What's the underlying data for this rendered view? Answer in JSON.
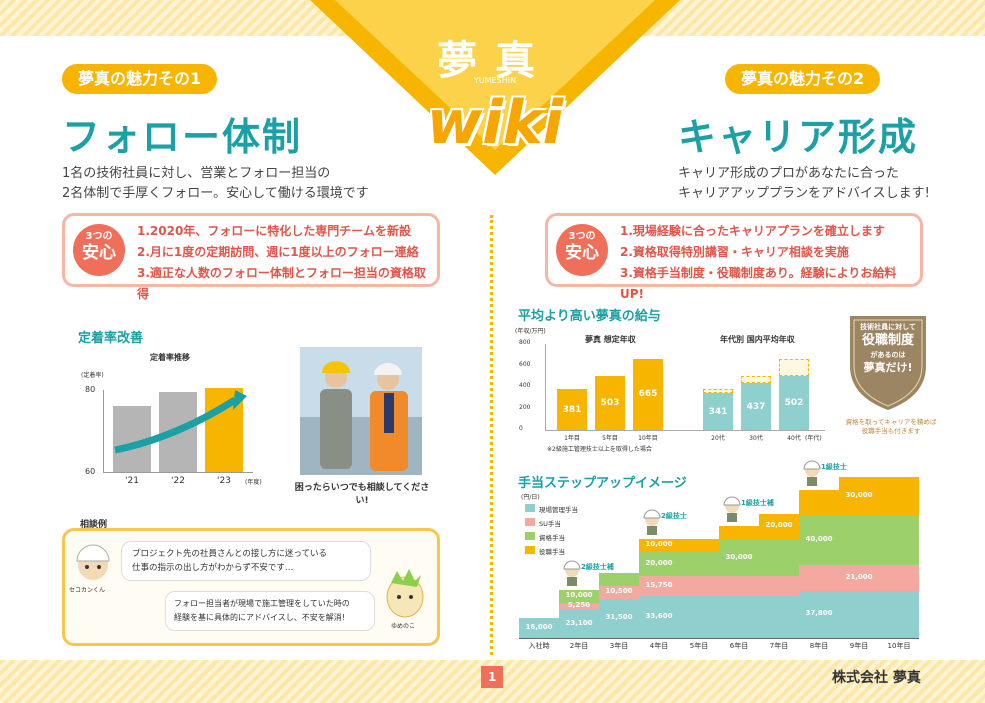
{
  "header": {
    "logo": "夢真",
    "logo_sub": "YUMESHIN",
    "wiki": "wiki"
  },
  "left": {
    "pill": "夢真の魅力その1",
    "title": "フォロー体制",
    "desc": [
      "1名の技術社員に対し、営業とフォロー担当の",
      "2名体制で手厚くフォロー。安心して働ける環境です"
    ],
    "badge_small": "3つの",
    "badge_big": "安心",
    "points": [
      "1.2020年、フォローに特化した専門チームを新設",
      "2.月に1度の定期訪問、週に1度以上のフォロー連絡",
      "3.適正な人数のフォロー体制とフォロー担当の資格取得"
    ],
    "section_title": "定着率改善",
    "photo_caption": "困ったらいつでも相談してください!",
    "consult_title": "相談例",
    "consult_q": [
      "プロジェクト先の社員さんとの接し方に迷っている",
      "仕事の指示の出し方がわからず不安です…"
    ],
    "consult_a": [
      "フォロー担当者が現場で施工管理をしていた時の",
      "経験を基に具体的にアドバイスし、不安を解消!"
    ],
    "name_q": "セコカンくん",
    "name_a": "ゆめのこ"
  },
  "right": {
    "pill": "夢真の魅力その2",
    "title": "キャリア形成",
    "desc": [
      "キャリア形成のプロがあなたに合った",
      "キャリアアッププランをアドバイスします!"
    ],
    "badge_small": "3つの",
    "badge_big": "安心",
    "points": [
      "1.現場経験に合ったキャリアプランを確立します",
      "2.資格取得特別講習・キャリア相談を実施",
      "3.資格手当制度・役職制度あり。経験によりお給料 UP!"
    ],
    "salary_title": "平均より高い夢真の給与",
    "emblem": [
      "技術社員に対して",
      "役職制度",
      "があるのは",
      "夢真だけ!"
    ],
    "emblem_note": [
      "資格を取ってキャリアを積めば",
      "役職手当も付きます"
    ],
    "step_title": "手当ステップアップイメージ"
  },
  "footer": {
    "page": "1",
    "company": "株式会社 夢真"
  },
  "chart_data": [
    {
      "type": "bar",
      "title": "定着率推移",
      "ylabel": "(定着率)",
      "categories": [
        "'21",
        "'22",
        "'23"
      ],
      "xunit": "(年度)",
      "yticks": [
        "80",
        "60"
      ],
      "ylim": [
        60,
        80
      ],
      "values": [
        76,
        79.5,
        80.5
      ],
      "colors": [
        "#b5b5b5",
        "#b5b5b5",
        "#f7b500"
      ]
    },
    {
      "type": "bar",
      "title": "夢真 想定年収",
      "yunit": "(年収/万円)",
      "yticks": [
        "800",
        "600",
        "400",
        "200",
        "0"
      ],
      "ylim": [
        0,
        800
      ],
      "categories": [
        "1年目",
        "5年目",
        "10年目"
      ],
      "values": [
        381,
        503,
        665
      ],
      "note": "※2級施工管理技士以上を取得した場合"
    },
    {
      "type": "bar",
      "title": "年代別 国内平均年収",
      "categories": [
        "20代",
        "30代",
        "40代"
      ],
      "xunit": "(年代)",
      "ylim": [
        0,
        800
      ],
      "values": [
        341,
        437,
        502
      ],
      "upper": [
        381,
        503,
        665
      ]
    },
    {
      "type": "area",
      "title": "手当ステップアップイメージ",
      "yunit": "(円/日)",
      "categories": [
        "入社時",
        "2年目",
        "3年目",
        "4年目",
        "5年目",
        "6年目",
        "7年目",
        "8年目",
        "9年目",
        "10年目"
      ],
      "series": [
        {
          "name": "現場管理手当",
          "values": [
            16000,
            23100,
            31500,
            33600,
            33600,
            33600,
            33600,
            37800,
            37800,
            37800
          ],
          "color": "#8fcfce"
        },
        {
          "name": "SU手当",
          "values": [
            0,
            5250,
            10500,
            15750,
            15750,
            15750,
            15750,
            21000,
            21000,
            21000
          ],
          "color": "#f4a9a0"
        },
        {
          "name": "資格手当",
          "values": [
            0,
            10000,
            10000,
            20000,
            20000,
            30000,
            30000,
            40000,
            40000,
            40000
          ],
          "color": "#9bd06a"
        },
        {
          "name": "役職手当",
          "values": [
            0,
            0,
            0,
            10000,
            10000,
            10000,
            20000,
            20000,
            30000,
            30000
          ],
          "color": "#f7b500"
        }
      ],
      "labels": [
        {
          "s": 0,
          "i": 0,
          "t": "16,000"
        },
        {
          "s": 0,
          "i": 1,
          "t": "23,100"
        },
        {
          "s": 0,
          "i": 2,
          "t": "31,500"
        },
        {
          "s": 0,
          "i": 3,
          "t": "33,600"
        },
        {
          "s": 0,
          "i": 7,
          "t": "37,800"
        },
        {
          "s": 1,
          "i": 1,
          "t": "5,250"
        },
        {
          "s": 1,
          "i": 2,
          "t": "10,500"
        },
        {
          "s": 1,
          "i": 3,
          "t": "15,750"
        },
        {
          "s": 1,
          "i": 8,
          "t": "21,000"
        },
        {
          "s": 2,
          "i": 1,
          "t": "10,000"
        },
        {
          "s": 2,
          "i": 3,
          "t": "20,000"
        },
        {
          "s": 2,
          "i": 5,
          "t": "30,000"
        },
        {
          "s": 2,
          "i": 7,
          "t": "40,000"
        },
        {
          "s": 3,
          "i": 3,
          "t": "10,000"
        },
        {
          "s": 3,
          "i": 6,
          "t": "20,000"
        },
        {
          "s": 3,
          "i": 8,
          "t": "30,000"
        }
      ],
      "ranks": [
        {
          "i": 1,
          "t": "2級技士補"
        },
        {
          "i": 3,
          "t": "2級技士"
        },
        {
          "i": 5,
          "t": "1級技士補"
        },
        {
          "i": 7,
          "t": "1級技士"
        }
      ]
    }
  ]
}
